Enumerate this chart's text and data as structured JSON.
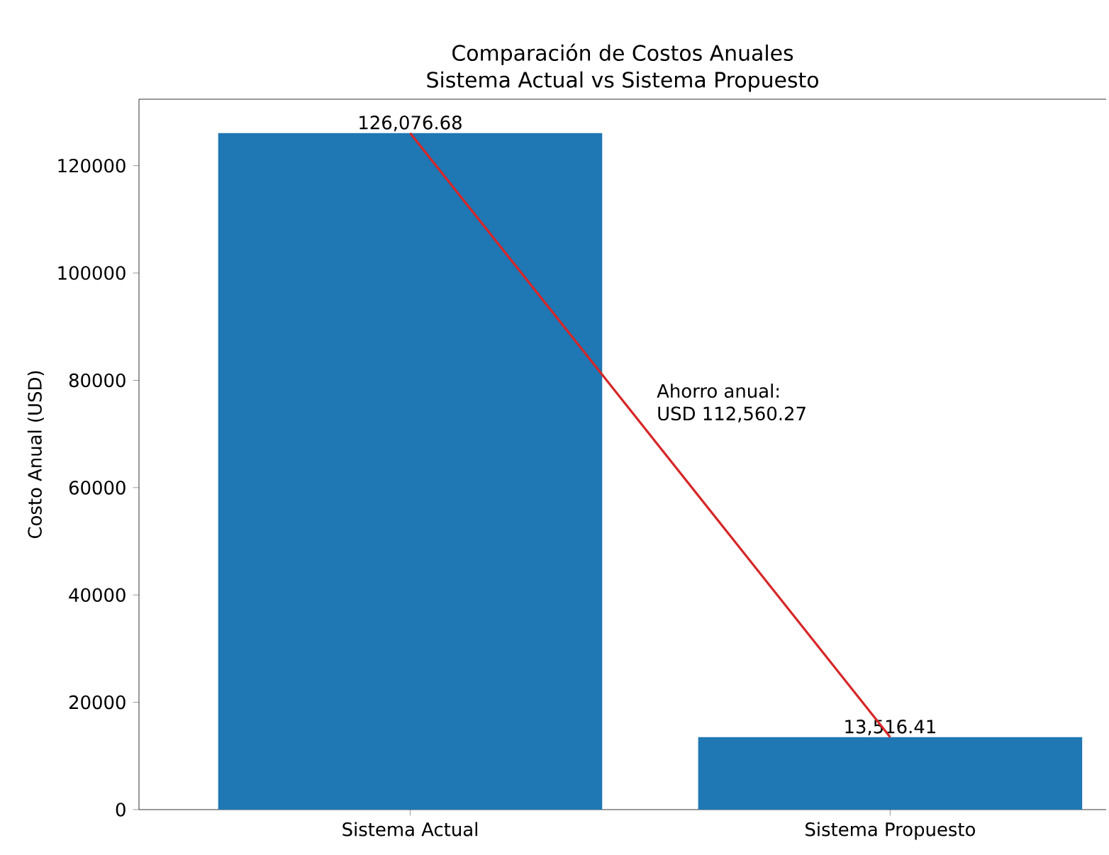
{
  "chart_data": {
    "type": "bar",
    "title": "Comparación de Costos Anuales",
    "subtitle": "Sistema Actual vs Sistema Propuesto",
    "ylabel": "Costo Anual (USD)",
    "categories": [
      "Sistema Actual",
      "Sistema Propuesto"
    ],
    "series": [
      {
        "color": "#1f77b4",
        "values": [
          126076.68,
          13516.41
        ],
        "value_labels": [
          "126,076.68",
          "13,516.41"
        ]
      },
      {
        "type": "line",
        "color": "#d62728",
        "values": [
          126076.68,
          13516.41
        ]
      }
    ],
    "ylim": [
      0,
      132380
    ],
    "yticks": [
      0,
      20000,
      40000,
      60000,
      80000,
      100000,
      120000
    ],
    "annotations": [
      "Ahorro anual:",
      "USD 112,560.27"
    ],
    "grid": false
  }
}
